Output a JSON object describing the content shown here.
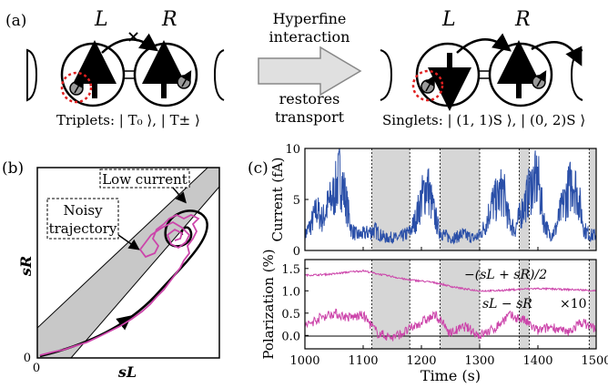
{
  "panel_a": {
    "label": "(a)",
    "dot_left_labels": {
      "left": "L",
      "right": "R"
    },
    "dot_right_labels": {
      "left": "L",
      "right": "R"
    },
    "arrow_top_line1": "Hyperfine",
    "arrow_top_line2": "interaction",
    "arrow_bottom_line1": "restores",
    "arrow_bottom_line2": "transport",
    "left_caption": "Triplets: | T₀ ⟩, | T± ⟩",
    "right_caption": "Singlets: | (1, 1)S ⟩, | (0, 2)S ⟩"
  },
  "panel_b": {
    "label": "(b)",
    "xlabel": "sL",
    "ylabel": "sR",
    "x_tick": "0",
    "y_tick": "0",
    "annotation_low_current": "Low current",
    "annotation_noisy_line1": "Noisy",
    "annotation_noisy_line2": "trajectory",
    "colors": {
      "trajectory": "#000000",
      "noisy": "#cc44aa",
      "band": "#c8c8c8"
    }
  },
  "panel_c": {
    "label": "(c)",
    "xlabel": "Time (s)",
    "x_ticks": [
      "1000",
      "1100",
      "1200",
      "1300",
      "1400",
      "1500"
    ],
    "top_ylabel": "Current (fA)",
    "top_y_ticks": [
      "0",
      "5",
      "10"
    ],
    "bottom_ylabel": "Polarization (%)",
    "bottom_y_ticks": [
      "0.0",
      "0.5",
      "1.0",
      "1.5"
    ],
    "label_sum": "−(sL + sR)/2",
    "label_diff": "sL − sR",
    "label_x10": "×10",
    "shaded_intervals": [
      [
        1115,
        1180
      ],
      [
        1232,
        1300
      ],
      [
        1368,
        1385
      ],
      [
        1488,
        1500
      ]
    ],
    "colors": {
      "current": "#2a4fa8",
      "polarization": "#cc44aa",
      "shade": "#d6d6d6"
    }
  },
  "chart_data": [
    {
      "type": "line",
      "title": "",
      "xlabel": "Time (s)",
      "ylabel": "Current (fA)",
      "xlim": [
        1000,
        1500
      ],
      "ylim": [
        0,
        10
      ],
      "x": [
        1000,
        1010,
        1020,
        1030,
        1040,
        1050,
        1060,
        1070,
        1080,
        1090,
        1100,
        1110,
        1120,
        1130,
        1140,
        1150,
        1160,
        1170,
        1180,
        1190,
        1200,
        1210,
        1220,
        1230,
        1240,
        1250,
        1260,
        1270,
        1280,
        1290,
        1300,
        1310,
        1320,
        1330,
        1340,
        1350,
        1360,
        1370,
        1380,
        1390,
        1400,
        1410,
        1420,
        1430,
        1440,
        1450,
        1460,
        1470,
        1480,
        1490,
        1500
      ],
      "series": [
        {
          "values": [
            1.5,
            2.5,
            4.0,
            3.0,
            4.5,
            5.5,
            7.5,
            5.0,
            2.0,
            1.5,
            1.6,
            1.8,
            2.0,
            1.5,
            1.2,
            1.3,
            1.2,
            1.5,
            1.8,
            3.0,
            5.0,
            6.5,
            4.0,
            2.0,
            1.5,
            1.2,
            1.3,
            1.6,
            1.4,
            1.2,
            1.5,
            2.5,
            4.5,
            5.0,
            6.0,
            3.0,
            2.0,
            3.5,
            5.0,
            6.5,
            7.0,
            3.0,
            1.5,
            2.0,
            4.0,
            5.5,
            7.0,
            5.0,
            2.0,
            1.5,
            1.5
          ]
        }
      ]
    },
    {
      "type": "line",
      "title": "",
      "xlabel": "Time (s)",
      "ylabel": "Polarization (%)",
      "xlim": [
        1000,
        1500
      ],
      "ylim": [
        -0.3,
        1.7
      ],
      "x": [
        1000,
        1025,
        1050,
        1075,
        1100,
        1125,
        1150,
        1175,
        1200,
        1225,
        1250,
        1275,
        1300,
        1325,
        1350,
        1375,
        1400,
        1425,
        1450,
        1475,
        1500
      ],
      "series": [
        {
          "values": [
            1.35,
            1.36,
            1.38,
            1.42,
            1.45,
            1.38,
            1.32,
            1.25,
            1.22,
            1.18,
            1.1,
            1.04,
            1.0,
            1.0,
            1.02,
            1.04,
            1.05,
            1.04,
            1.03,
            1.02,
            1.0
          ]
        },
        {
          "values": [
            0.2,
            0.4,
            0.5,
            0.4,
            0.45,
            0.05,
            -0.05,
            0.1,
            0.3,
            0.45,
            0.05,
            0.2,
            0.0,
            0.15,
            0.45,
            0.35,
            0.1,
            0.2,
            0.05,
            0.3,
            0.15
          ]
        }
      ]
    }
  ]
}
